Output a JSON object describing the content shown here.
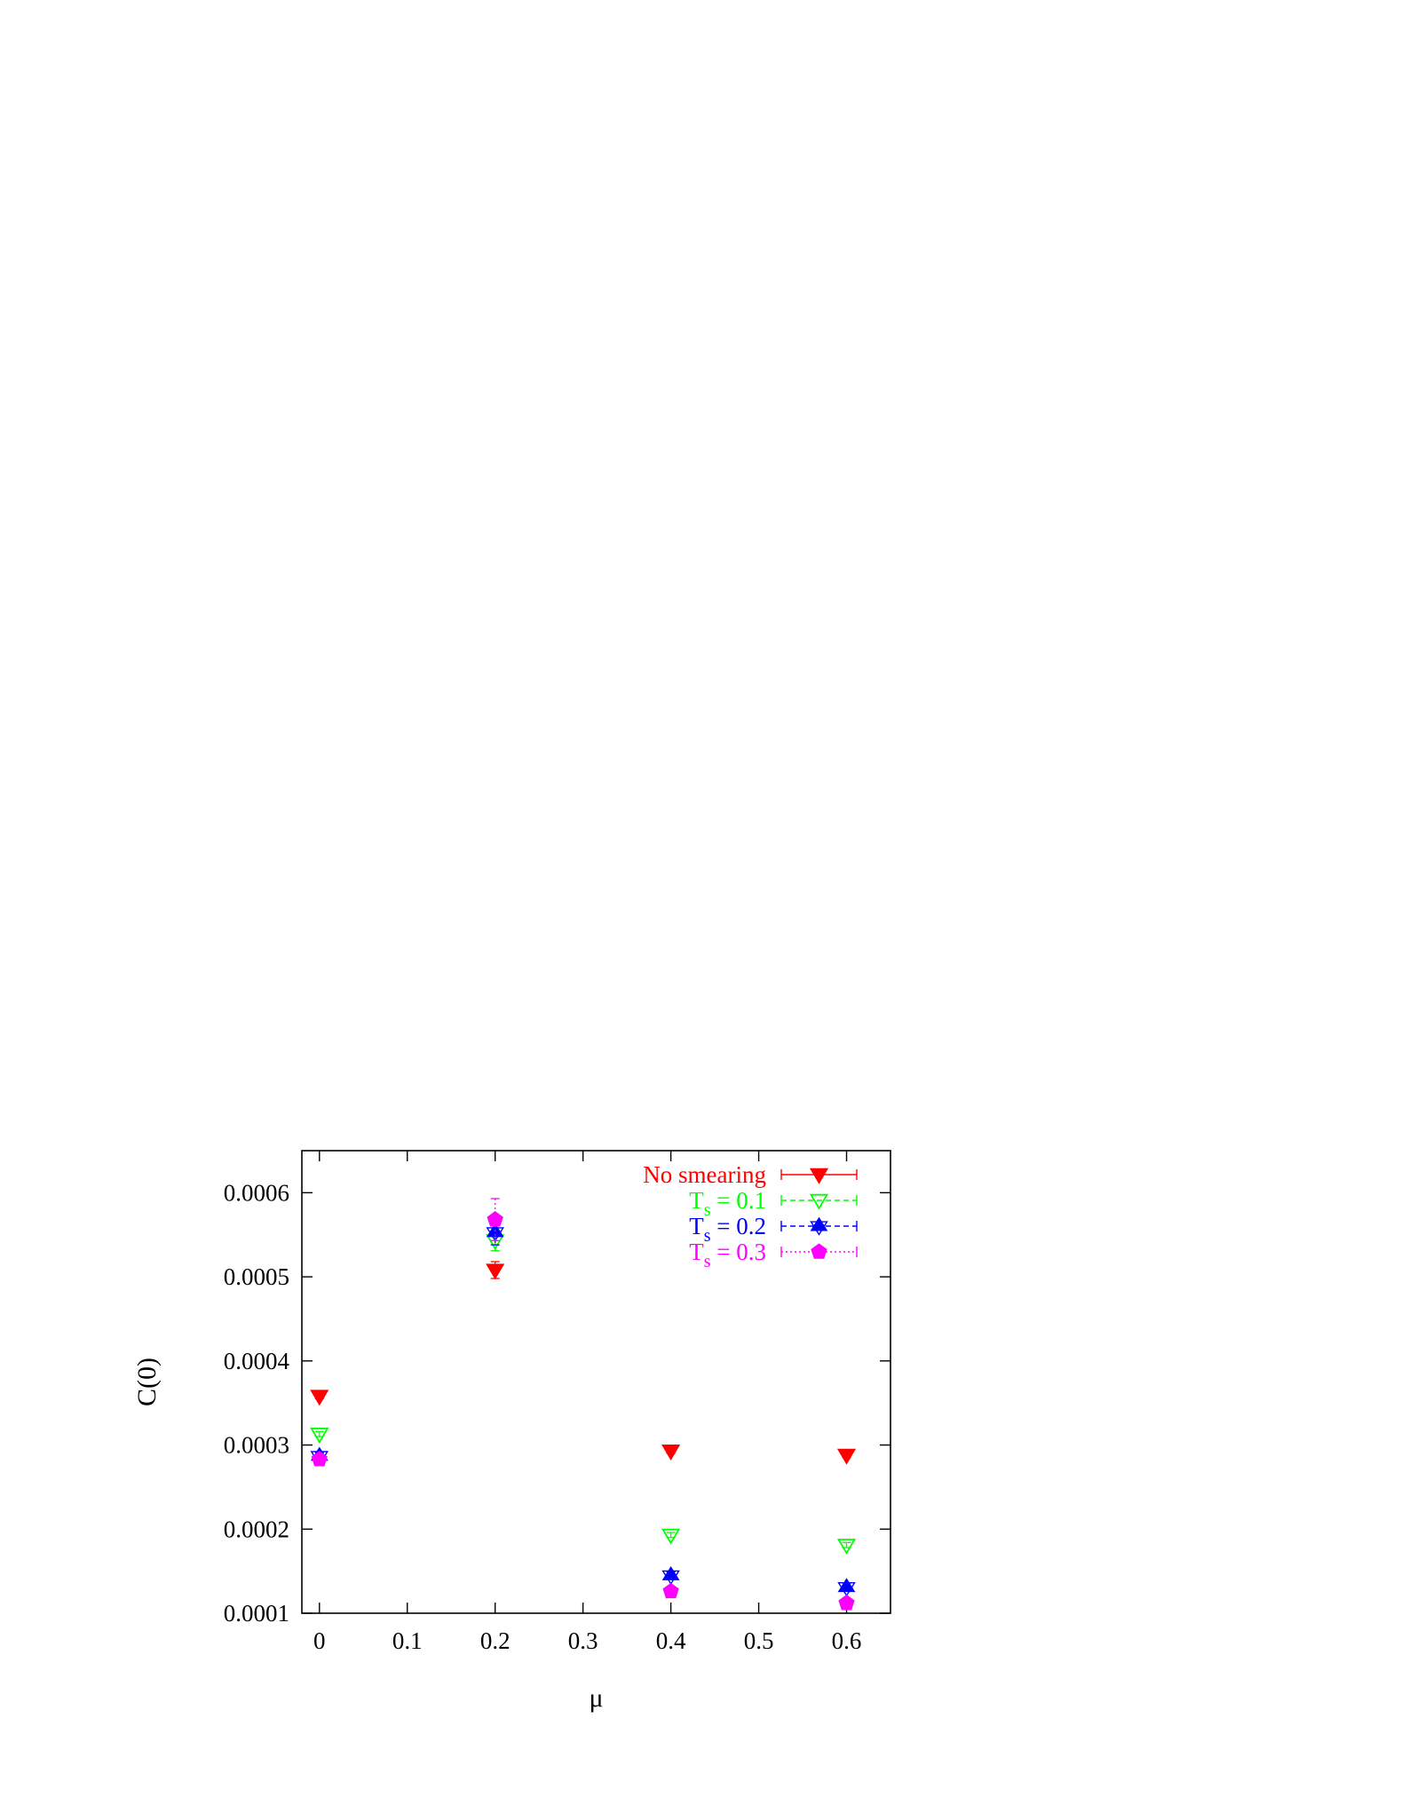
{
  "chart_data": {
    "type": "scatter",
    "title": "",
    "xlabel": "μ",
    "ylabel": "C(0)",
    "xlim": [
      -0.02,
      0.65
    ],
    "ylim": [
      0.0001,
      0.00065
    ],
    "x_ticks": [
      0,
      0.1,
      0.2,
      0.3,
      0.4,
      0.5,
      0.6
    ],
    "x_tick_labels": [
      "0",
      "0.1",
      "0.2",
      "0.3",
      "0.4",
      "0.5",
      "0.6"
    ],
    "y_ticks": [
      0.0001,
      0.0002,
      0.0003,
      0.0004,
      0.0005,
      0.0006
    ],
    "y_tick_labels": [
      "0.0001",
      "0.0002",
      "0.0003",
      "0.0004",
      "0.0005",
      "0.0006"
    ],
    "grid": false,
    "legend_position": "top-right",
    "x": [
      0,
      0.2,
      0.4,
      0.6
    ],
    "series": [
      {
        "name": "No smearing",
        "legend_main": "No smearing",
        "legend_sub": "",
        "legend_rest": "",
        "color": "#ff0000",
        "marker": "filled-down-triangle",
        "line_style": "solid",
        "y": [
          0.000358,
          0.000508,
          0.000293,
          0.000288
        ],
        "err": [
          3e-06,
          1e-05,
          3e-06,
          3e-06
        ]
      },
      {
        "name": "Ts = 0.1",
        "legend_main": "T",
        "legend_sub": "s",
        "legend_rest": " = 0.1",
        "color": "#00ff00",
        "marker": "open-down-triangle",
        "line_style": "dashed",
        "y": [
          0.000313,
          0.000543,
          0.000193,
          0.000181
        ],
        "err": [
          3e-06,
          1.2e-05,
          3e-06,
          3e-06
        ]
      },
      {
        "name": "Ts = 0.2",
        "legend_main": "T",
        "legend_sub": "s",
        "legend_rest": " = 0.2",
        "color": "#0000ff",
        "marker": "filled-star",
        "line_style": "dashed",
        "y": [
          0.000287,
          0.000553,
          0.000145,
          0.000131
        ],
        "err": [
          4e-06,
          1.5e-05,
          4e-06,
          5e-06
        ]
      },
      {
        "name": "Ts = 0.3",
        "legend_main": "T",
        "legend_sub": "s",
        "legend_rest": " = 0.3",
        "color": "#ff00ff",
        "marker": "filled-pentagon",
        "line_style": "dotted",
        "y": [
          0.000283,
          0.000568,
          0.000126,
          0.000112
        ],
        "err": [
          4e-06,
          2.5e-05,
          4e-06,
          6e-06
        ]
      }
    ]
  }
}
